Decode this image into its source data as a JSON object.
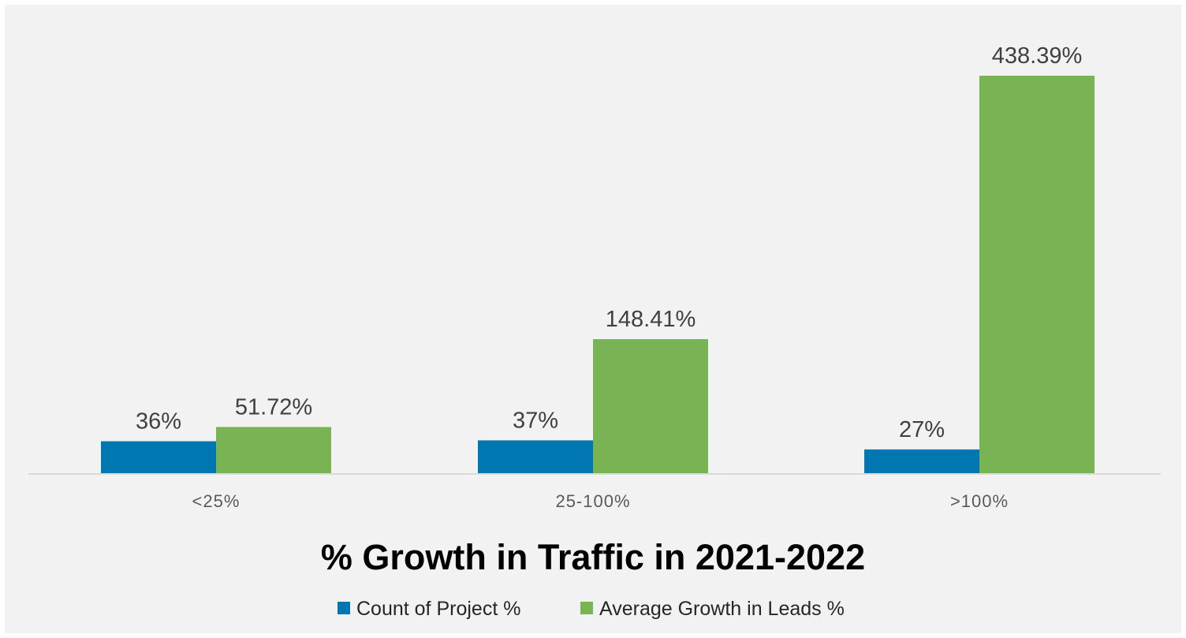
{
  "chart_data": {
    "type": "bar",
    "title": "% Growth in Traffic in 2021-2022",
    "categories": [
      "<25%",
      "25-100%",
      ">100%"
    ],
    "series": [
      {
        "name": "Count of Project %",
        "color": "#0077b0",
        "values": [
          36,
          37,
          27
        ],
        "labels": [
          "36%",
          "37%",
          "27%"
        ]
      },
      {
        "name": "Average Growth in Leads %",
        "color": "#7ab354",
        "values": [
          51.72,
          148.41,
          438.39
        ],
        "labels": [
          "51.72%",
          "148.41%",
          "438.39%"
        ]
      }
    ],
    "grid": false,
    "legend": "bottom-center"
  }
}
